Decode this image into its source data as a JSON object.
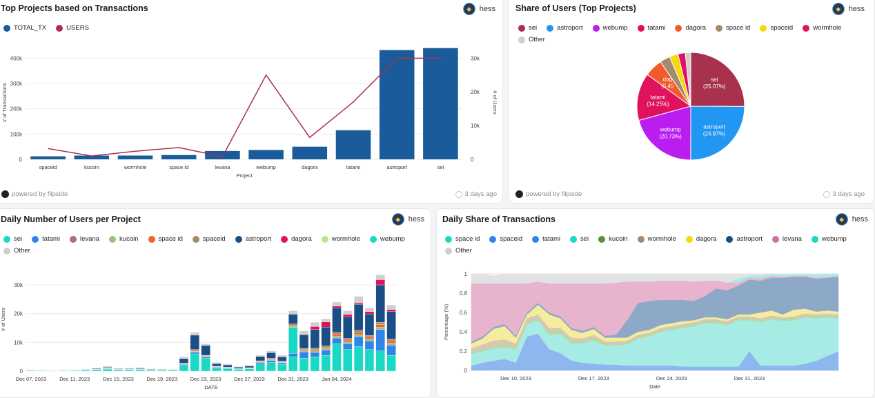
{
  "author": "hess",
  "footer": {
    "powered": "powered by flipside",
    "updated": "3 days ago"
  },
  "panels": {
    "top_projects": {
      "title": "Top Projects based on Transactions"
    },
    "share_users": {
      "title": "Share of Users (Top Projects)"
    },
    "daily_users": {
      "title": "Daily Number of Users per Project"
    },
    "daily_share": {
      "title": "Daily Share of Transactions"
    }
  },
  "chart_data": [
    {
      "id": "top_projects",
      "type": "bar",
      "title": "Top Projects based on Transactions",
      "categories": [
        "spaceid",
        "kucoin",
        "wormhole",
        "space id",
        "levana",
        "webump",
        "dagora",
        "tatami",
        "astroport",
        "sei"
      ],
      "series": [
        {
          "name": "TOTAL_TX",
          "type": "bar",
          "axis": "left",
          "color": "#1a5c9b",
          "values": [
            12000,
            15000,
            15000,
            17000,
            33000,
            37000,
            50000,
            115000,
            432000,
            440000
          ]
        },
        {
          "name": "USERS",
          "type": "line",
          "axis": "right",
          "color": "#a8324d",
          "values": [
            3200,
            1000,
            2400,
            3500,
            800,
            25000,
            6500,
            17000,
            30000,
            30000
          ]
        }
      ],
      "xlabel": "Project",
      "ylabel": "# of Transactions",
      "y2label": "# of Users",
      "ylim": [
        0,
        450000
      ],
      "y2lim": [
        0,
        33750
      ],
      "yticks": [
        "0",
        "100k",
        "200k",
        "300k",
        "400k"
      ],
      "y2ticks": [
        "0",
        "10k",
        "20k",
        "30k"
      ]
    },
    {
      "id": "share_users",
      "type": "pie",
      "title": "Share of Users (Top Projects)",
      "slices": [
        {
          "name": "sei",
          "value": 25.07,
          "color": "#a8324d",
          "label": "sei (25.07%)"
        },
        {
          "name": "astroport",
          "value": 24.97,
          "color": "#2196f3",
          "label": "astroport (24.97%)"
        },
        {
          "name": "webump",
          "value": 20.73,
          "color": "#b91df0",
          "label": "webump (20.73%)"
        },
        {
          "name": "tatami",
          "value": 14.25,
          "color": "#e0125e",
          "label": "tatami (14.25%)"
        },
        {
          "name": "dagora",
          "value": 5.45,
          "color": "#f25a2a",
          "label": "dag (5.45"
        },
        {
          "name": "space id",
          "value": 3.1,
          "color": "#a58b6d",
          "label": ""
        },
        {
          "name": "spaceid",
          "value": 2.6,
          "color": "#f5d90a",
          "label": ""
        },
        {
          "name": "wormhole",
          "value": 2.2,
          "color": "#e01265",
          "label": ""
        },
        {
          "name": "Other",
          "value": 1.63,
          "color": "#cfcfcf",
          "label": ""
        }
      ]
    },
    {
      "id": "daily_users",
      "type": "bar",
      "stacked": true,
      "title": "Daily Number of Users per Project",
      "xlabel": "DATE",
      "ylabel": "# of Users",
      "ylim": [
        0,
        36000
      ],
      "yticks": [
        "0",
        "10k",
        "20k",
        "30k"
      ],
      "xticks": [
        "Dec 07, 2023",
        "Dec 11, 2023",
        "Dec 15, 2023",
        "Dec 19, 2023",
        "Dec 23, 2023",
        "Dec 27, 2023",
        "Dec 31, 2023",
        "Jan 04, 2024"
      ],
      "legend": [
        {
          "name": "sei",
          "color": "#1ad9c4"
        },
        {
          "name": "tatami",
          "color": "#2f86e8"
        },
        {
          "name": "levana",
          "color": "#b5678f"
        },
        {
          "name": "kucoin",
          "color": "#93c47d"
        },
        {
          "name": "space id",
          "color": "#f2622e"
        },
        {
          "name": "spaceid",
          "color": "#a58b6d"
        },
        {
          "name": "astroport",
          "color": "#1a4f86"
        },
        {
          "name": "dagora",
          "color": "#e0125e"
        },
        {
          "name": "wormhole",
          "color": "#b8e986"
        },
        {
          "name": "webump",
          "color": "#1ad9c4"
        },
        {
          "name": "Other",
          "color": "#cfcfcf"
        }
      ],
      "totals": [
        500,
        400,
        300,
        400,
        500,
        700,
        1200,
        1700,
        1000,
        1100,
        1300,
        900,
        800,
        700,
        5000,
        13500,
        9500,
        3000,
        2500,
        1500,
        2000,
        5500,
        7000,
        5500,
        21000,
        14000,
        17000,
        18000,
        24000,
        21000,
        26000,
        22000,
        33500,
        23000
      ],
      "segments": [
        {
          "name": "sei",
          "color": "#1ad9c4",
          "values": [
            200,
            150,
            120,
            150,
            200,
            300,
            500,
            700,
            400,
            450,
            500,
            350,
            300,
            280,
            2000,
            6000,
            4500,
            1200,
            900,
            600,
            800,
            2500,
            3000,
            2400,
            5000,
            4500,
            5000,
            5500,
            9500,
            7500,
            8500,
            7500,
            7000,
            5500
          ]
        },
        {
          "name": "tatami",
          "color": "#2f86e8",
          "values": [
            50,
            40,
            30,
            40,
            50,
            60,
            100,
            150,
            80,
            90,
            100,
            80,
            60,
            50,
            300,
            600,
            400,
            200,
            150,
            100,
            150,
            500,
            700,
            500,
            1200,
            2200,
            1500,
            1800,
            2000,
            2000,
            3500,
            3000,
            7500,
            3500
          ]
        },
        {
          "name": "webump",
          "color": "#1ad9c4",
          "values": [
            0,
            0,
            0,
            0,
            0,
            0,
            0,
            0,
            0,
            0,
            0,
            0,
            0,
            0,
            0,
            0,
            0,
            0,
            0,
            0,
            0,
            0,
            0,
            0,
            9000,
            0,
            0,
            0,
            0,
            0,
            0,
            0,
            0,
            0
          ]
        },
        {
          "name": "kucoin",
          "color": "#93c47d",
          "values": [
            30,
            30,
            20,
            30,
            30,
            40,
            60,
            90,
            60,
            60,
            70,
            50,
            50,
            40,
            150,
            300,
            200,
            100,
            100,
            60,
            80,
            200,
            250,
            200,
            400,
            400,
            500,
            500,
            600,
            600,
            700,
            600,
            800,
            700
          ]
        },
        {
          "name": "space id",
          "color": "#f2622e",
          "values": [
            30,
            30,
            20,
            30,
            30,
            40,
            60,
            90,
            60,
            60,
            70,
            50,
            50,
            40,
            150,
            300,
            200,
            100,
            100,
            60,
            80,
            200,
            250,
            200,
            400,
            400,
            500,
            500,
            800,
            700,
            800,
            700,
            900,
            800
          ]
        },
        {
          "name": "spaceid",
          "color": "#a58b6d",
          "values": [
            30,
            30,
            20,
            30,
            30,
            40,
            60,
            90,
            60,
            60,
            70,
            50,
            50,
            40,
            150,
            300,
            200,
            100,
            100,
            60,
            80,
            200,
            250,
            200,
            400,
            400,
            500,
            500,
            600,
            600,
            700,
            600,
            800,
            700
          ]
        },
        {
          "name": "astroport",
          "color": "#1a4f86",
          "values": [
            80,
            60,
            50,
            60,
            80,
            120,
            200,
            280,
            180,
            200,
            220,
            150,
            130,
            110,
            1600,
            5000,
            3400,
            900,
            800,
            480,
            600,
            1500,
            2000,
            1500,
            3400,
            4800,
            6500,
            6500,
            8500,
            7500,
            9000,
            7500,
            13000,
            9500
          ]
        },
        {
          "name": "dagora",
          "color": "#e0125e",
          "values": [
            0,
            0,
            0,
            0,
            0,
            0,
            0,
            0,
            0,
            0,
            0,
            0,
            0,
            0,
            0,
            0,
            0,
            0,
            0,
            0,
            0,
            0,
            0,
            0,
            0,
            0,
            1000,
            1800,
            600,
            800,
            500,
            800,
            1800,
            700
          ]
        },
        {
          "name": "levana",
          "color": "#b5678f",
          "values": [
            0,
            0,
            0,
            0,
            0,
            0,
            0,
            0,
            0,
            0,
            0,
            0,
            0,
            0,
            0,
            0,
            0,
            0,
            0,
            0,
            0,
            0,
            0,
            0,
            0,
            0,
            0,
            0,
            0,
            0,
            0,
            0,
            0,
            0
          ]
        },
        {
          "name": "Other",
          "color": "#cfcfcf",
          "values": [
            80,
            60,
            60,
            60,
            80,
            100,
            220,
            300,
            160,
            180,
            270,
            170,
            160,
            140,
            650,
            1000,
            600,
            400,
            350,
            240,
            290,
            400,
            550,
            500,
            1200,
            1300,
            1500,
            1100,
            1400,
            1300,
            2300,
            1300,
            1700,
            1600
          ]
        }
      ]
    },
    {
      "id": "daily_share",
      "type": "area",
      "stacked": true,
      "normalized": true,
      "title": "Daily Share of Transactions",
      "xlabel": "Date",
      "ylabel": "Percentage (%)",
      "ylim": [
        0,
        1
      ],
      "yticks": [
        "0",
        "0.2",
        "0.4",
        "0.6",
        "0.8",
        "1"
      ],
      "xticks": [
        "Dec 10, 2023",
        "Dec 17, 2023",
        "Dec 24, 2023",
        "Dec 31, 2023"
      ],
      "legend": [
        {
          "name": "space id",
          "color": "#1ad9c4"
        },
        {
          "name": "spaceid",
          "color": "#2f86e8"
        },
        {
          "name": "tatami",
          "color": "#2f86e8"
        },
        {
          "name": "sei",
          "color": "#1ad9c4"
        },
        {
          "name": "kucoin",
          "color": "#5a8f3a"
        },
        {
          "name": "wormhole",
          "color": "#a58b6d"
        },
        {
          "name": "dagora",
          "color": "#f5d90a"
        },
        {
          "name": "astroport",
          "color": "#1a4f86"
        },
        {
          "name": "levana",
          "color": "#d06fa4"
        },
        {
          "name": "webump",
          "color": "#1ad9c4"
        },
        {
          "name": "Other",
          "color": "#cfcfcf"
        }
      ],
      "series": [
        {
          "name": "tatami",
          "color": "#8fb7ef",
          "values": [
            0.05,
            0.08,
            0.1,
            0.12,
            0.08,
            0.35,
            0.38,
            0.22,
            0.18,
            0.1,
            0.08,
            0.07,
            0.06,
            0.06,
            0.05,
            0.05,
            0.05,
            0.05,
            0.05,
            0.04,
            0.04,
            0.04,
            0.04,
            0.04,
            0.04,
            0.2,
            0.05,
            0.05,
            0.05,
            0.05,
            0.07,
            0.1,
            0.15,
            0.2
          ]
        },
        {
          "name": "sei",
          "color": "#a6ebe4",
          "values": [
            0.12,
            0.12,
            0.13,
            0.12,
            0.14,
            0.13,
            0.14,
            0.15,
            0.2,
            0.18,
            0.2,
            0.24,
            0.2,
            0.2,
            0.22,
            0.28,
            0.3,
            0.35,
            0.37,
            0.4,
            0.42,
            0.45,
            0.45,
            0.43,
            0.48,
            0.32,
            0.45,
            0.48,
            0.46,
            0.47,
            0.48,
            0.44,
            0.4,
            0.34
          ]
        },
        {
          "name": "kucoin",
          "color": "#b9d8a6",
          "values": [
            0.02,
            0.02,
            0.02,
            0.03,
            0.02,
            0.02,
            0.02,
            0.03,
            0.03,
            0.03,
            0.02,
            0.03,
            0.02,
            0.02,
            0.02,
            0.02,
            0.02,
            0.02,
            0.02,
            0.02,
            0.02,
            0.02,
            0.02,
            0.02,
            0.02,
            0.02,
            0.02,
            0.02,
            0.02,
            0.02,
            0.02,
            0.02,
            0.02,
            0.02
          ]
        },
        {
          "name": "wormhole",
          "color": "#d7c7b3",
          "values": [
            0.04,
            0.05,
            0.06,
            0.05,
            0.04,
            0.04,
            0.04,
            0.04,
            0.03,
            0.03,
            0.03,
            0.03,
            0.02,
            0.02,
            0.02,
            0.02,
            0.02,
            0.02,
            0.02,
            0.02,
            0.02,
            0.02,
            0.02,
            0.02,
            0.02,
            0.02,
            0.02,
            0.02,
            0.02,
            0.02,
            0.02,
            0.02,
            0.02,
            0.02
          ]
        },
        {
          "name": "dagora",
          "color": "#f6ec9e",
          "values": [
            0.05,
            0.06,
            0.12,
            0.14,
            0.06,
            0.04,
            0.1,
            0.14,
            0.1,
            0.08,
            0.06,
            0.06,
            0.04,
            0.04,
            0.03,
            0.03,
            0.03,
            0.03,
            0.03,
            0.03,
            0.02,
            0.02,
            0.02,
            0.02,
            0.02,
            0.02,
            0.06,
            0.05,
            0.03,
            0.07,
            0.05,
            0.03,
            0.03,
            0.03
          ]
        },
        {
          "name": "astroport",
          "color": "#8ea9c7",
          "values": [
            0.02,
            0.02,
            0.02,
            0.02,
            0.02,
            0.02,
            0.02,
            0.02,
            0.02,
            0.02,
            0.02,
            0.02,
            0.02,
            0.03,
            0.18,
            0.3,
            0.3,
            0.26,
            0.24,
            0.22,
            0.2,
            0.22,
            0.3,
            0.3,
            0.3,
            0.36,
            0.33,
            0.34,
            0.38,
            0.34,
            0.33,
            0.34,
            0.34,
            0.36
          ]
        },
        {
          "name": "levana",
          "color": "#e7b3cd",
          "values": [
            0.6,
            0.55,
            0.45,
            0.42,
            0.54,
            0.3,
            0.22,
            0.3,
            0.34,
            0.46,
            0.49,
            0.45,
            0.54,
            0.54,
            0.4,
            0.22,
            0.2,
            0.2,
            0.2,
            0.2,
            0.2,
            0.16,
            0.08,
            0.08,
            0.03,
            0.02,
            0.02,
            0.02,
            0.01,
            0.01,
            0.01,
            0.01,
            0.01,
            0.01
          ]
        },
        {
          "name": "webump",
          "color": "#a6ebe4",
          "values": [
            0,
            0,
            0,
            0,
            0,
            0,
            0,
            0,
            0,
            0,
            0,
            0,
            0,
            0,
            0,
            0,
            0,
            0,
            0,
            0,
            0,
            0,
            0,
            0,
            0.04,
            0.02,
            0.03,
            0.02,
            0.02,
            0.02,
            0.02,
            0.03,
            0.04,
            0.04
          ]
        },
        {
          "name": "Other",
          "color": "#e2e2e2",
          "values": [
            0.1,
            0.1,
            0.08,
            0.1,
            0.1,
            0.1,
            0.08,
            0.1,
            0.1,
            0.1,
            0.1,
            0.1,
            0.1,
            0.09,
            0.08,
            0.08,
            0.08,
            0.07,
            0.07,
            0.07,
            0.08,
            0.07,
            0.07,
            0.09,
            0.05,
            0.02,
            0.02,
            0.0,
            0.01,
            0.0,
            0.0,
            0.01,
            0.0,
            0.0
          ]
        }
      ]
    }
  ]
}
